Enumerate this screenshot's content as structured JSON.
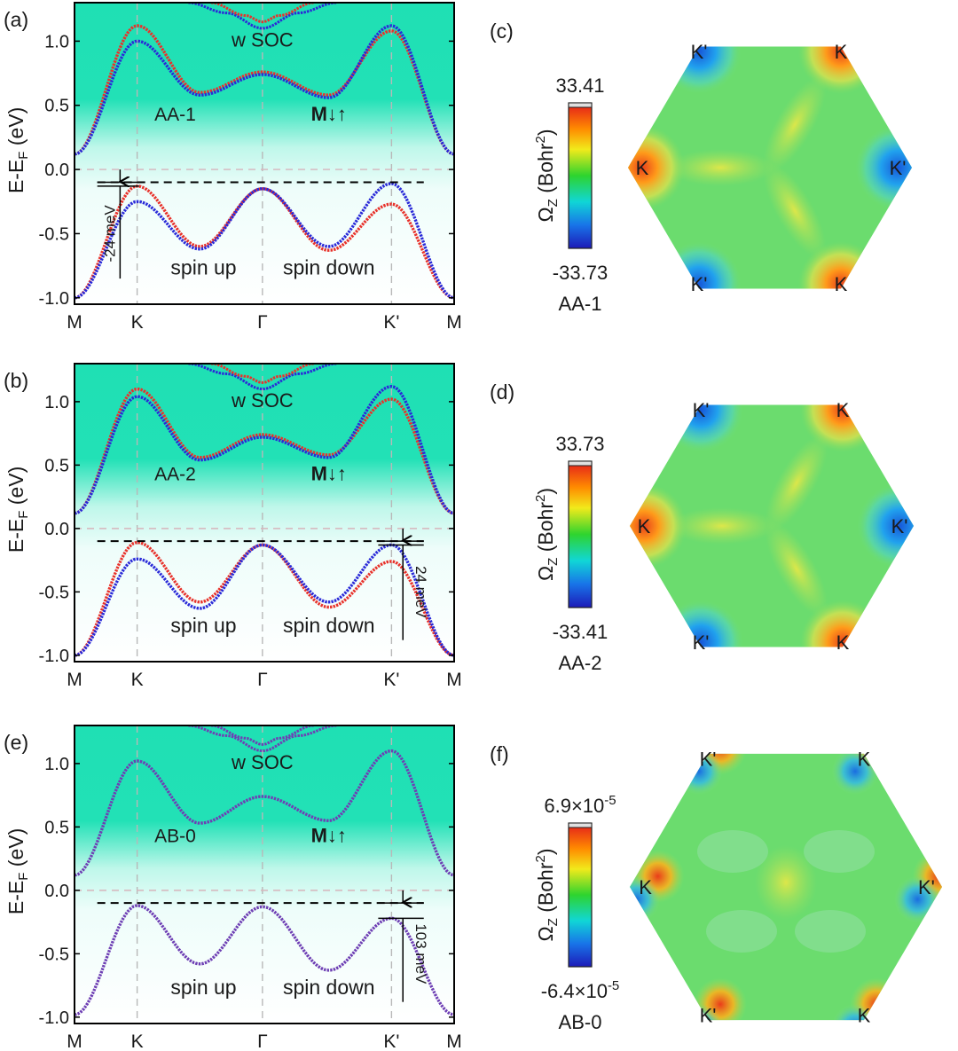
{
  "figure": {
    "band_panels": [
      {
        "panel_label": "(a)",
        "stacking_label": "AA-1",
        "soc_label": "w SOC",
        "magnet_label": "M↓↑",
        "spin_up_label": "spin up",
        "spin_down_label": "spin down",
        "gap_label": "-24 meV",
        "gap_side": "K",
        "ylabel_main": "E-E",
        "ylabel_sub": "F",
        "ylabel_unit": " (eV)",
        "yticks": [
          "1.0",
          "0.5",
          "0.0",
          "-0.5",
          "-1.0"
        ],
        "xticks": [
          "M",
          "K",
          "Γ",
          "K'",
          "M"
        ],
        "colors": {
          "spin_up": "#e8322b",
          "spin_down": "#2a2ad8"
        }
      },
      {
        "panel_label": "(b)",
        "stacking_label": "AA-2",
        "soc_label": "w SOC",
        "magnet_label": "M↓↑",
        "spin_up_label": "spin up",
        "spin_down_label": "spin down",
        "gap_label": "24 meV",
        "gap_side": "K'",
        "ylabel_main": "E-E",
        "ylabel_sub": "F",
        "ylabel_unit": " (eV)",
        "yticks": [
          "1.0",
          "0.5",
          "0.0",
          "-0.5",
          "-1.0"
        ],
        "xticks": [
          "M",
          "K",
          "Γ",
          "K'",
          "M"
        ],
        "colors": {
          "spin_up": "#e8322b",
          "spin_down": "#2a2ad8"
        }
      },
      {
        "panel_label": "(e)",
        "stacking_label": "AB-0",
        "soc_label": "w SOC",
        "magnet_label": "M↓↑",
        "spin_up_label": "spin up",
        "spin_down_label": "spin down",
        "gap_label": "103 meV",
        "gap_side": "K'",
        "ylabel_main": "E-E",
        "ylabel_sub": "F",
        "ylabel_unit": " (eV)",
        "yticks": [
          "1.0",
          "0.5",
          "0.0",
          "-0.5",
          "-1.0"
        ],
        "xticks": [
          "M",
          "K",
          "Γ",
          "K'",
          "M"
        ],
        "colors": {
          "spin_up": "#e8322b",
          "spin_down": "#2a2ad8"
        }
      }
    ],
    "berry_panels": [
      {
        "panel_label": "(c)",
        "colorbar_max": "33.41",
        "colorbar_min": "-33.73",
        "colorbar_title": "Ω",
        "colorbar_title_sub": "Z",
        "colorbar_unit": " (Bohr",
        "colorbar_unit_sup": "2",
        "colorbar_unit_end": ")",
        "stacking_label": "AA-1",
        "valley_labels": [
          "K'",
          "K",
          "K",
          "K'",
          "K'",
          "K"
        ]
      },
      {
        "panel_label": "(d)",
        "colorbar_max": "33.73",
        "colorbar_min": "-33.41",
        "colorbar_title": "Ω",
        "colorbar_title_sub": "Z",
        "colorbar_unit": " (Bohr",
        "colorbar_unit_sup": "2",
        "colorbar_unit_end": ")",
        "stacking_label": "AA-2",
        "valley_labels": [
          "K'",
          "K",
          "K",
          "K'",
          "K'",
          "K"
        ]
      },
      {
        "panel_label": "(f)",
        "colorbar_max": "6.9×10",
        "colorbar_max_exp": "-5",
        "colorbar_min": "-6.4×10",
        "colorbar_min_exp": "-5",
        "colorbar_title": "Ω",
        "colorbar_title_sub": "Z",
        "colorbar_unit": " (Bohr",
        "colorbar_unit_sup": "2",
        "colorbar_unit_end": ")",
        "stacking_label": "AB-0",
        "valley_labels": [
          "K'",
          "K",
          "K",
          "K'",
          "K'",
          "K"
        ]
      }
    ]
  },
  "chart_data": [
    {
      "type": "line",
      "panel": "(a)",
      "xlabel": "",
      "ylabel": "E-E_F (eV)",
      "x": [
        "M",
        "K",
        "Γ",
        "K'",
        "M"
      ],
      "ylim": [
        -1.05,
        1.3
      ],
      "series": [
        {
          "name": "spin up",
          "values_vb": [
            -1.0,
            -0.13,
            -0.15,
            -0.27,
            -1.0
          ],
          "values_cb": [
            0.12,
            1.12,
            0.75,
            1.08,
            0.12
          ]
        },
        {
          "name": "spin down",
          "values_vb": [
            -1.0,
            -0.25,
            -0.15,
            -0.11,
            -1.0
          ],
          "values_cb": [
            0.12,
            1.0,
            0.75,
            1.12,
            0.12
          ]
        }
      ]
    },
    {
      "type": "line",
      "panel": "(b)",
      "xlabel": "",
      "ylabel": "E-E_F (eV)",
      "x": [
        "M",
        "K",
        "Γ",
        "K'",
        "M"
      ],
      "ylim": [
        -1.05,
        1.3
      ],
      "series": [
        {
          "name": "spin up",
          "values_vb": [
            -1.0,
            -0.11,
            -0.13,
            -0.26,
            -1.0
          ],
          "values_cb": [
            0.12,
            1.1,
            0.73,
            1.02,
            0.12
          ]
        },
        {
          "name": "spin down",
          "values_vb": [
            -1.0,
            -0.24,
            -0.13,
            -0.13,
            -1.0
          ],
          "values_cb": [
            0.12,
            1.04,
            0.73,
            1.12,
            0.12
          ]
        }
      ]
    },
    {
      "type": "line",
      "panel": "(e)",
      "xlabel": "",
      "ylabel": "E-E_F (eV)",
      "x": [
        "M",
        "K",
        "Γ",
        "K'",
        "M"
      ],
      "ylim": [
        -1.05,
        1.3
      ],
      "series": [
        {
          "name": "spin up",
          "values_vb": [
            -0.98,
            -0.12,
            -0.13,
            -0.22,
            -0.98
          ],
          "values_cb": [
            0.12,
            1.02,
            0.74,
            1.1,
            0.12
          ]
        },
        {
          "name": "spin down",
          "values_vb": [
            -0.98,
            -0.12,
            -0.13,
            -0.22,
            -0.98
          ],
          "values_cb": [
            0.12,
            1.02,
            0.74,
            1.1,
            0.12
          ]
        }
      ]
    }
  ]
}
